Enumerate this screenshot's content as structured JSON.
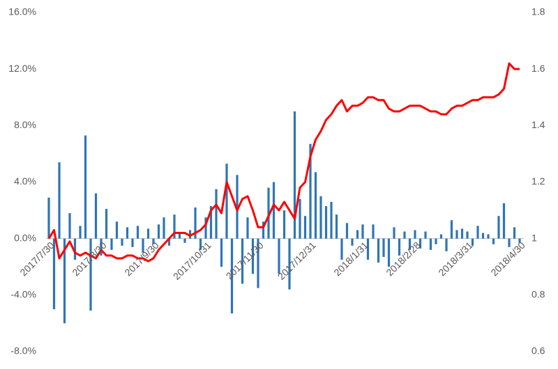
{
  "chart_data": {
    "type": "combo",
    "categories": [
      "2017/7/30",
      null,
      null,
      null,
      null,
      null,
      null,
      null,
      null,
      null,
      "2017/8/30",
      null,
      null,
      null,
      null,
      null,
      null,
      null,
      null,
      null,
      "2017/9/30",
      null,
      null,
      null,
      null,
      null,
      null,
      null,
      null,
      null,
      "2017/10/31",
      null,
      null,
      null,
      null,
      null,
      null,
      null,
      null,
      null,
      "2017/11/30",
      null,
      null,
      null,
      null,
      null,
      null,
      null,
      null,
      null,
      "2017/12/31",
      null,
      null,
      null,
      null,
      null,
      null,
      null,
      null,
      null,
      "2018/1/31",
      null,
      null,
      null,
      null,
      null,
      null,
      null,
      null,
      null,
      "2018/2/28",
      null,
      null,
      null,
      null,
      null,
      null,
      null,
      null,
      null,
      "2018/3/31",
      null,
      null,
      null,
      null,
      null,
      null,
      null,
      null,
      null,
      "2018/4/30"
    ],
    "series": [
      {
        "type": "bar",
        "color": "#2e75b6",
        "values": [
          2.9,
          -5.0,
          5.4,
          -6.0,
          1.8,
          -1.5,
          0.9,
          7.3,
          -5.1,
          3.2,
          -1.2,
          2.1,
          -0.8,
          1.2,
          -0.5,
          0.8,
          -0.6,
          0.9,
          -1.0,
          0.7,
          -0.4,
          1.0,
          1.5,
          -0.5,
          1.7,
          0.4,
          -0.3,
          0.6,
          2.2,
          -0.8,
          1.5,
          2.3,
          3.5,
          -2.0,
          5.3,
          -5.3,
          4.5,
          -3.2,
          1.5,
          -2.5,
          -3.5,
          1.2,
          3.6,
          4.0,
          -2.5,
          2.0,
          -3.6,
          9.0,
          2.8,
          1.6,
          6.7,
          4.7,
          3.0,
          2.3,
          2.6,
          1.7,
          -1.5,
          1.1,
          -0.5,
          0.6,
          1.0,
          -1.5,
          1.0,
          -1.7,
          -1.3,
          -2.0,
          0.8,
          -1.2,
          0.5,
          -0.8,
          0.6,
          -0.7,
          0.5,
          -0.8,
          -0.4,
          0.3,
          -0.9,
          1.3,
          0.6,
          0.7,
          0.5,
          -0.5,
          0.9,
          0.4,
          0.3,
          -0.4,
          1.6,
          2.5,
          -0.6,
          0.8,
          -0.3
        ]
      },
      {
        "type": "line",
        "axis": "y2",
        "color": "#ff0000",
        "values": [
          1.0,
          1.03,
          0.93,
          0.96,
          0.99,
          0.95,
          0.94,
          0.95,
          0.94,
          0.93,
          0.96,
          0.94,
          0.94,
          0.93,
          0.93,
          0.94,
          0.94,
          0.93,
          0.93,
          0.92,
          0.93,
          0.96,
          0.98,
          1.0,
          1.02,
          1.02,
          1.02,
          1.01,
          1.02,
          1.03,
          1.05,
          1.1,
          1.12,
          1.09,
          1.2,
          1.15,
          1.1,
          1.14,
          1.15,
          1.1,
          1.04,
          1.04,
          1.08,
          1.12,
          1.1,
          1.13,
          1.1,
          1.07,
          1.18,
          1.2,
          1.29,
          1.35,
          1.38,
          1.42,
          1.44,
          1.47,
          1.49,
          1.45,
          1.47,
          1.47,
          1.48,
          1.5,
          1.5,
          1.49,
          1.49,
          1.46,
          1.45,
          1.45,
          1.46,
          1.47,
          1.47,
          1.47,
          1.46,
          1.45,
          1.45,
          1.44,
          1.44,
          1.46,
          1.47,
          1.47,
          1.48,
          1.49,
          1.49,
          1.5,
          1.5,
          1.5,
          1.51,
          1.53,
          1.62,
          1.6,
          1.6
        ]
      }
    ],
    "ylim": [
      -8,
      16
    ],
    "yticks": [
      {
        "value": -8,
        "label": "-8.0%"
      },
      {
        "value": -4,
        "label": "-4.0%"
      },
      {
        "value": 0,
        "label": "0.0%"
      },
      {
        "value": 4,
        "label": "4.0%"
      },
      {
        "value": 8,
        "label": "8.0%"
      },
      {
        "value": 12,
        "label": "12.0%"
      },
      {
        "value": 16,
        "label": "16.0%"
      }
    ],
    "y2lim": [
      0.6,
      1.8
    ],
    "y2ticks": [
      0.6,
      0.8,
      1,
      1.2,
      1.4,
      1.6,
      1.8
    ]
  }
}
